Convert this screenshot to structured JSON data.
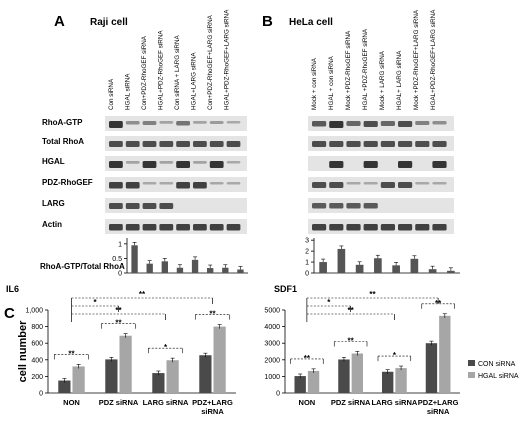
{
  "panels": {
    "A": {
      "letter": "A",
      "title": "Raji cell",
      "lanes": [
        "Con siRNA",
        "HGAL siRNA",
        "Con+PDZ-RhoGEF siRNA",
        "HGAL+PDZ-RhoGEF siRNA",
        "Con siRNA + LARG siRNA",
        "HGAL+LARG siRNA",
        "Con+PDZ-RhoGEF+LARG siRNA",
        "HGAL+PDZ-RhoGEF+LARG siRNA"
      ]
    },
    "B": {
      "letter": "B",
      "title": "HeLa cell",
      "lanes": [
        "Mock + con siRNA",
        "HGAL + con siRNA",
        "Mock +PDZ-RhoGEF siRNA",
        "HGAL +PDZ-RhoGEF siRNA",
        "Mock + LARG siRNA",
        "HGAL+ LARG siRNA",
        "Mock +PDZ-RhoGEF+LARG siRNA",
        "HGAL+PDZ-RhoGEF+LARG siRNA"
      ]
    },
    "C": {
      "letter": "C"
    }
  },
  "blot_rows": [
    "RhoA-GTP",
    "Total RhoA",
    "HGAL",
    "PDZ-RhoGEF",
    "LARG",
    "Actin"
  ],
  "ratio_label": "RhoA-GTP/Total RhoA",
  "chart_data": [
    {
      "id": "raji-ratio",
      "type": "bar",
      "title": "",
      "ylabel": "",
      "ylim": [
        0,
        1.2
      ],
      "yticks": [
        "0",
        "0.5",
        "1"
      ],
      "tick_values": [
        0,
        0.5,
        1
      ],
      "values": [
        0.95,
        0.32,
        0.4,
        0.18,
        0.45,
        0.17,
        0.18,
        0.12
      ]
    },
    {
      "id": "hela-ratio",
      "type": "bar",
      "title": "",
      "ylabel": "",
      "ylim": [
        0,
        3.2
      ],
      "yticks": [
        "0",
        "1",
        "2",
        "3"
      ],
      "tick_values": [
        0,
        1,
        2,
        3
      ],
      "values": [
        1.0,
        2.2,
        0.75,
        1.35,
        0.7,
        1.3,
        0.35,
        0.2
      ]
    },
    {
      "id": "il6",
      "type": "bar",
      "title": "IL6",
      "ylabel": "cell number",
      "ylim": [
        0,
        1000
      ],
      "yticks": [
        "0",
        "200",
        "400",
        "600",
        "800",
        "1,000"
      ],
      "tick_values": [
        0,
        200,
        400,
        600,
        800,
        1000
      ],
      "categories": [
        "NON",
        "PDZ siRNA",
        "LARG siRNA",
        "PDZ+LARG siRNA"
      ],
      "series": [
        {
          "name": "CON siRNA",
          "color": "#4a4a4a",
          "values": [
            150,
            405,
            240,
            455
          ]
        },
        {
          "name": "HGAL siRNA",
          "color": "#a6a6a6",
          "values": [
            320,
            690,
            395,
            800
          ]
        }
      ],
      "significance": [
        "**",
        "**",
        "*",
        "**"
      ],
      "cross": [
        "**",
        "*",
        "**"
      ]
    },
    {
      "id": "sdf1",
      "type": "bar",
      "title": "SDF1",
      "ylabel": "",
      "ylim": [
        0,
        5000
      ],
      "yticks": [
        "0",
        "1000",
        "2000",
        "3000",
        "4000",
        "5000"
      ],
      "tick_values": [
        0,
        1000,
        2000,
        3000,
        4000,
        5000
      ],
      "categories": [
        "NON",
        "PDZ siRNA",
        "LARG siRNA",
        "PDZ+LARG siRNA"
      ],
      "series": [
        {
          "name": "CON siRNA",
          "color": "#4a4a4a",
          "values": [
            1020,
            2020,
            1280,
            3000
          ]
        },
        {
          "name": "HGAL siRNA",
          "color": "#a6a6a6",
          "values": [
            1330,
            2380,
            1500,
            4650
          ]
        }
      ],
      "significance": [
        "**",
        "**",
        "*",
        "**"
      ],
      "cross": [
        "**",
        "*",
        "**"
      ]
    }
  ],
  "legend": [
    "CON siRNA",
    "HGAL siRNA"
  ],
  "colors": {
    "dark_bar": "#4a4a4a",
    "light_bar": "#a6a6a6",
    "ratio_bar": "#555555",
    "blot_bg": "#e4e4e4",
    "band": "#2a2a2a"
  }
}
